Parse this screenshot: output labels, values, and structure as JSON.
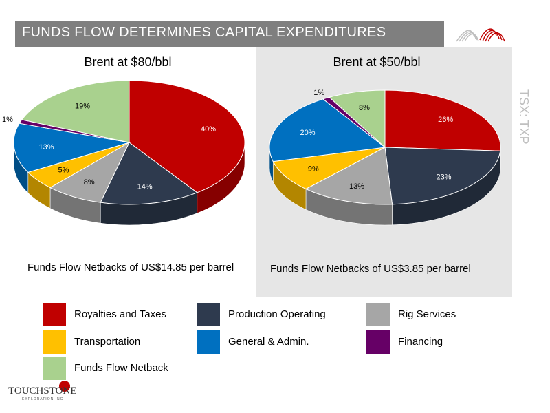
{
  "header": {
    "title": "FUNDS FLOW DETERMINES CAPITAL EXPENDITURES",
    "side_label": "TSX: TXP"
  },
  "branding": {
    "company_logo_text": "TOUCHSTONE",
    "company_logo_subtext": "EXPLORATION INC"
  },
  "colors": {
    "royalties": "#c00000",
    "production": "#2e3a4e",
    "rig": "#a6a6a6",
    "transportation": "#ffc000",
    "general": "#0070c0",
    "financing": "#660066",
    "netback": "#a9d18e",
    "title_bar": "#7f7f7f",
    "panel": "#e6e6e6"
  },
  "chart_data": [
    {
      "type": "pie",
      "title": "Brent at $80/bbl",
      "caption": "Funds Flow Netbacks of US$14.85 per barrel",
      "categories": [
        "Royalties and Taxes",
        "Production Operating",
        "Rig Services",
        "Transportation",
        "General & Admin.",
        "Financing",
        "Funds Flow Netback"
      ],
      "values": [
        40,
        14,
        8,
        5,
        13,
        1,
        19
      ],
      "labels": [
        "40%",
        "14%",
        "8%",
        "5%",
        "13%",
        "1%",
        "19%"
      ]
    },
    {
      "type": "pie",
      "title": "Brent at $50/bbl",
      "caption": "Funds Flow Netbacks of US$3.85 per barrel",
      "categories": [
        "Royalties and Taxes",
        "Production Operating",
        "Rig Services",
        "Transportation",
        "General & Admin.",
        "Financing",
        "Funds Flow Netback"
      ],
      "values": [
        26,
        23,
        13,
        9,
        20,
        1,
        8
      ],
      "labels": [
        "26%",
        "23%",
        "13%",
        "9%",
        "20%",
        "1%",
        "8%"
      ]
    }
  ],
  "legend": [
    {
      "label": "Royalties and Taxes",
      "color": "#c00000"
    },
    {
      "label": "Production Operating",
      "color": "#2e3a4e"
    },
    {
      "label": "Rig Services",
      "color": "#a6a6a6"
    },
    {
      "label": "Transportation",
      "color": "#ffc000"
    },
    {
      "label": "General & Admin.",
      "color": "#0070c0"
    },
    {
      "label": "Financing",
      "color": "#660066"
    },
    {
      "label": "Funds Flow Netback",
      "color": "#a9d18e"
    }
  ]
}
